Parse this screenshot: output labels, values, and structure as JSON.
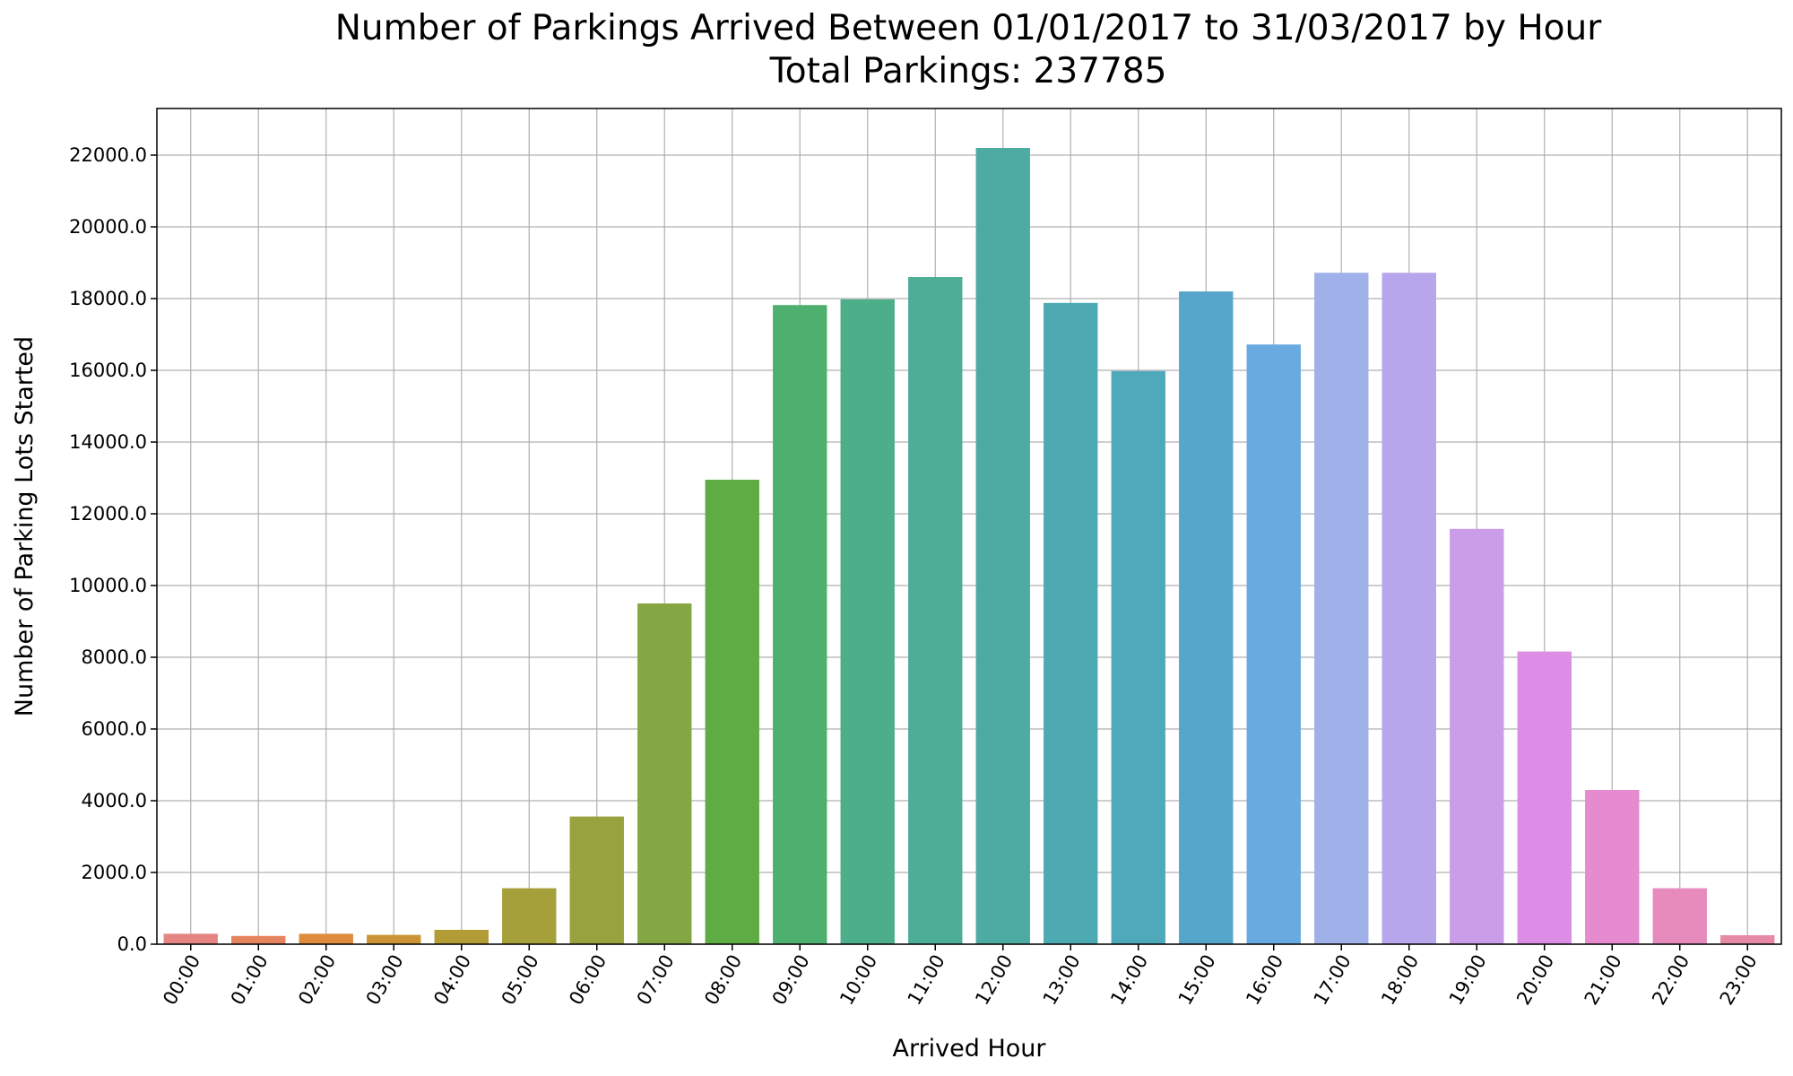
{
  "chart_data": {
    "type": "bar",
    "title": "Number of Parkings Arrived Between 01/01/2017 to 31/03/2017 by Hour",
    "subtitle": "Total Parkings: 237785",
    "xlabel": "Arrived Hour",
    "ylabel": "Number of Parking Lots Started",
    "ylim": [
      0,
      23300
    ],
    "yticks": [
      "0.0",
      "2000.0",
      "4000.0",
      "6000.0",
      "8000.0",
      "10000.0",
      "12000.0",
      "14000.0",
      "16000.0",
      "18000.0",
      "20000.0",
      "22000.0"
    ],
    "ytick_values": [
      0,
      2000,
      4000,
      6000,
      8000,
      10000,
      12000,
      14000,
      16000,
      18000,
      20000,
      22000
    ],
    "grid": true,
    "categories": [
      "00:00",
      "01:00",
      "02:00",
      "03:00",
      "04:00",
      "05:00",
      "06:00",
      "07:00",
      "08:00",
      "09:00",
      "10:00",
      "11:00",
      "12:00",
      "13:00",
      "14:00",
      "15:00",
      "16:00",
      "17:00",
      "18:00",
      "19:00",
      "20:00",
      "21:00",
      "22:00",
      "23:00"
    ],
    "values": [
      290,
      230,
      290,
      260,
      400,
      1560,
      3560,
      9500,
      12950,
      17820,
      17980,
      18600,
      22200,
      17880,
      15980,
      18200,
      16720,
      18720,
      18720,
      11580,
      8160,
      4300,
      1560,
      250
    ],
    "colors": [
      "#e48582",
      "#e5845f",
      "#de8b3c",
      "#cb9536",
      "#b39c36",
      "#a6a03a",
      "#98a23e",
      "#84a744",
      "#5fac44",
      "#4eb06f",
      "#4dae8a",
      "#4dad97",
      "#4daba3",
      "#4eaab2",
      "#50a9bb",
      "#56a6cc",
      "#69abe0",
      "#a0b0e9",
      "#b7a6ec",
      "#cb9de8",
      "#dd8de5",
      "#e78bd1",
      "#e78bbd",
      "#e68aa6"
    ]
  }
}
